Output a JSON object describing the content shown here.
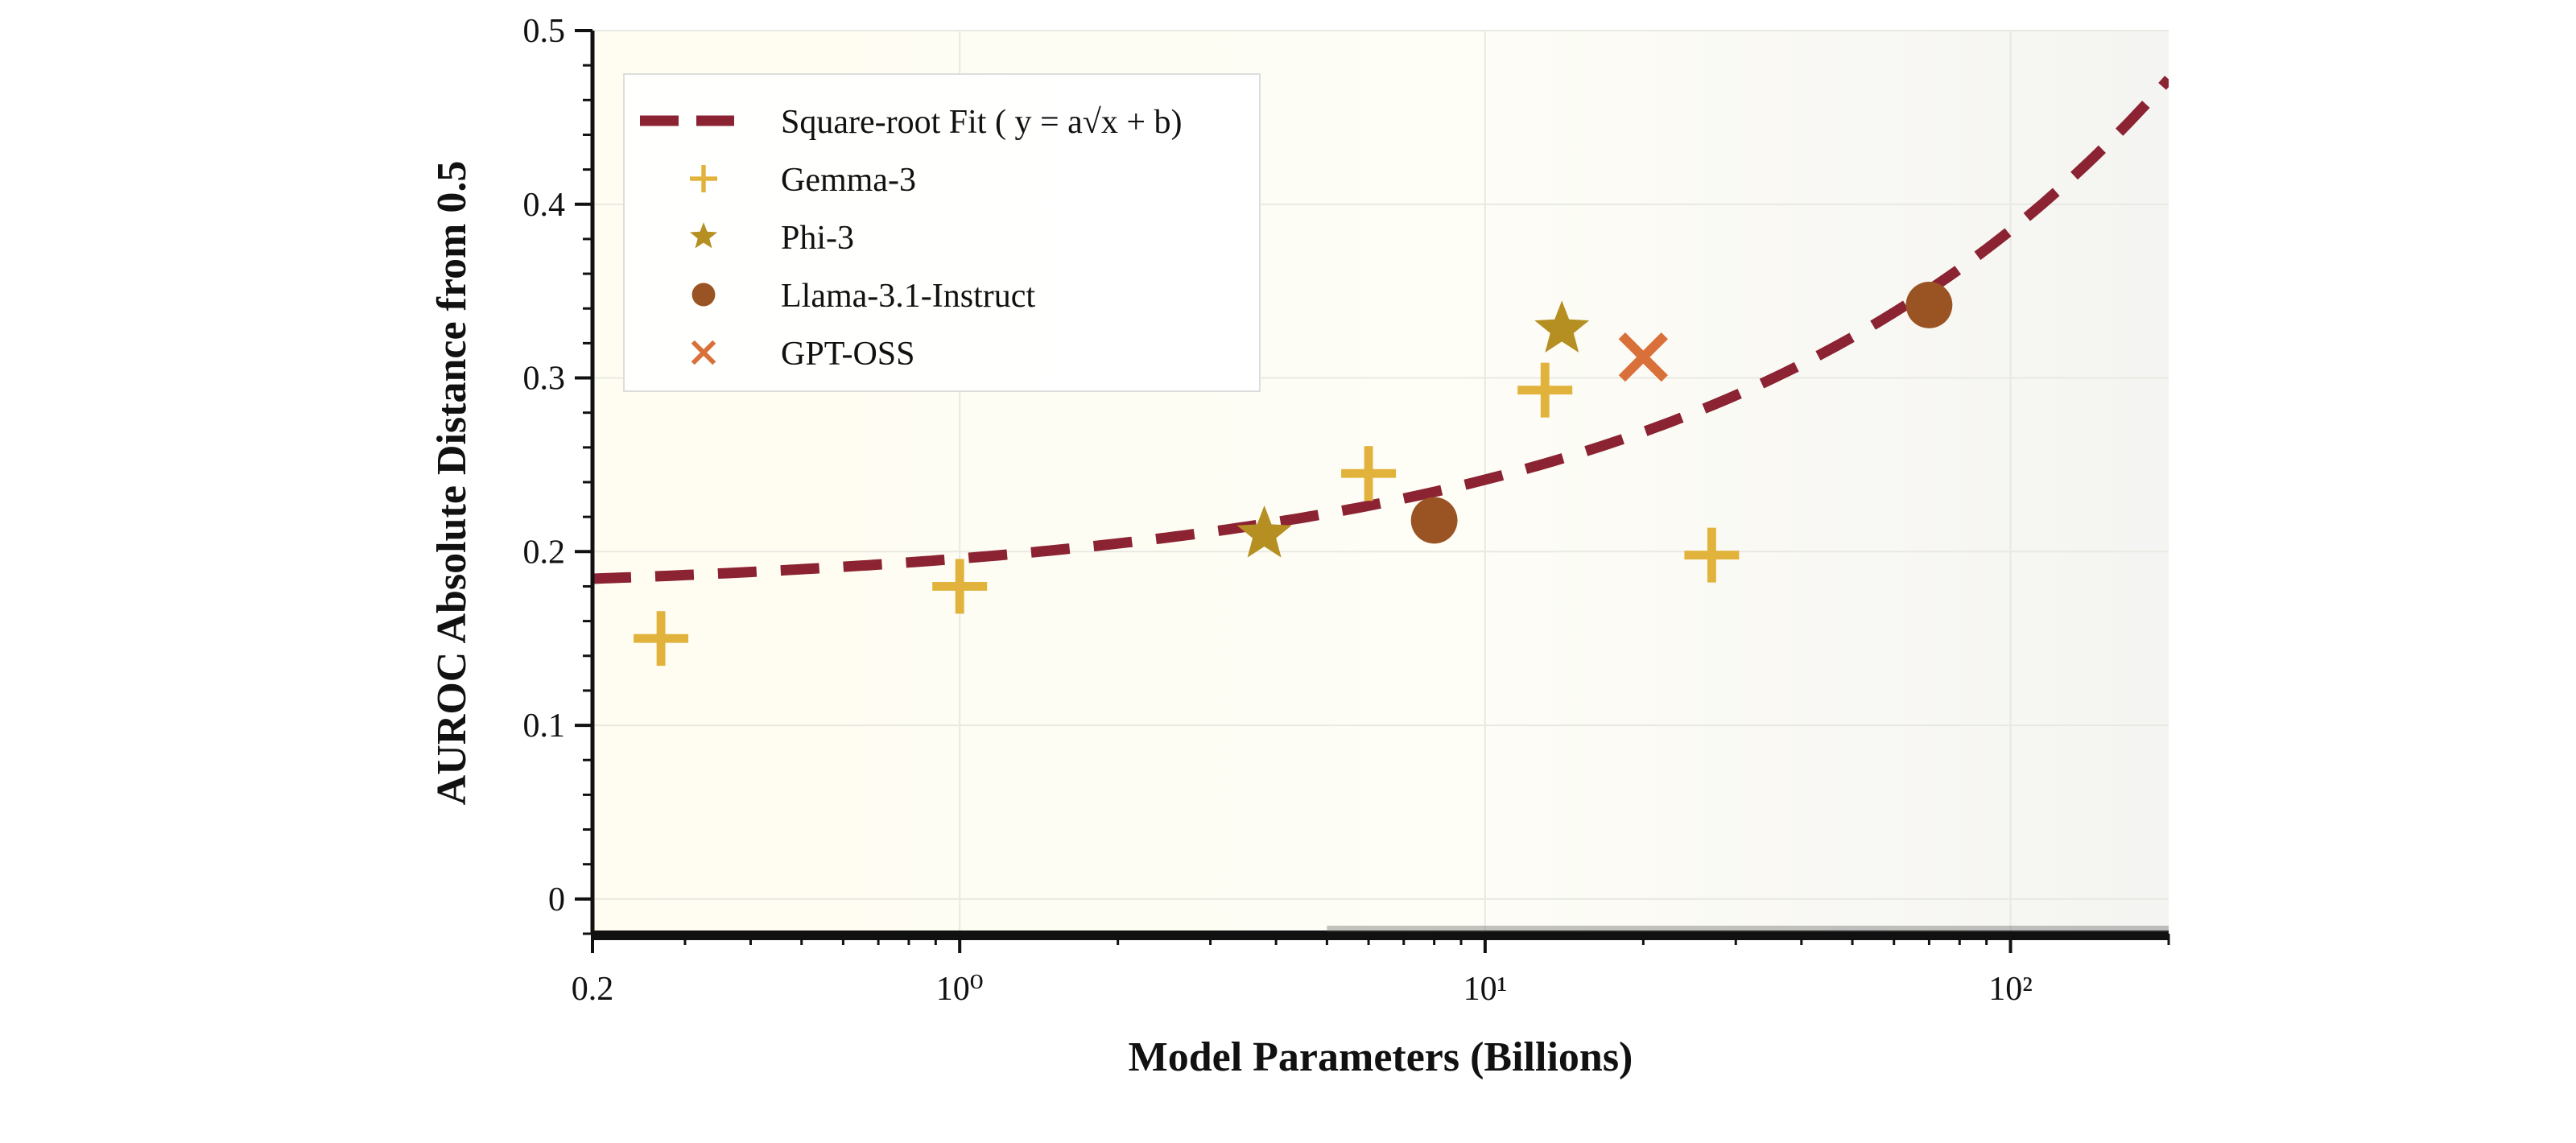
{
  "chart_data": {
    "type": "scatter",
    "title": "",
    "xlabel": "Model Parameters (Billions)",
    "ylabel": "AUROC Absolute Distance from 0.5",
    "xscale": "log",
    "xlim": [
      0.2,
      200
    ],
    "ylim": [
      -0.02,
      0.5
    ],
    "grid": true,
    "legend_position": "top-left",
    "x_ticks": [
      {
        "value": 0.2,
        "label": "0.2"
      },
      {
        "value": 1,
        "label": "10⁰"
      },
      {
        "value": 10,
        "label": "10¹"
      },
      {
        "value": 100,
        "label": "10²"
      }
    ],
    "y_ticks": [
      {
        "value": 0,
        "label": "0"
      },
      {
        "value": 0.1,
        "label": "0.1"
      },
      {
        "value": 0.2,
        "label": "0.2"
      },
      {
        "value": 0.3,
        "label": "0.3"
      },
      {
        "value": 0.4,
        "label": "0.4"
      },
      {
        "value": 0.5,
        "label": "0.5"
      }
    ],
    "fit": {
      "name": "Square-root Fit ( y = a√x + b)",
      "color": "#8b2332",
      "style": "dashed",
      "a": 0.021,
      "b": 0.175
    },
    "series": [
      {
        "name": "Gemma-3",
        "marker": "plus",
        "color": "#e2b33c",
        "points": [
          {
            "x": 0.27,
            "y": 0.15
          },
          {
            "x": 1,
            "y": 0.18
          },
          {
            "x": 6,
            "y": 0.245
          },
          {
            "x": 13,
            "y": 0.293
          },
          {
            "x": 27,
            "y": 0.198
          }
        ]
      },
      {
        "name": "Phi-3",
        "marker": "star",
        "color": "#b58f22",
        "points": [
          {
            "x": 3.8,
            "y": 0.21
          },
          {
            "x": 14,
            "y": 0.328
          }
        ]
      },
      {
        "name": "Llama-3.1-Instruct",
        "marker": "circle",
        "color": "#9a5424",
        "points": [
          {
            "x": 8,
            "y": 0.218
          },
          {
            "x": 70,
            "y": 0.342
          }
        ]
      },
      {
        "name": "GPT-OSS",
        "marker": "x",
        "color": "#d9703a",
        "points": [
          {
            "x": 20,
            "y": 0.312
          }
        ]
      }
    ]
  }
}
